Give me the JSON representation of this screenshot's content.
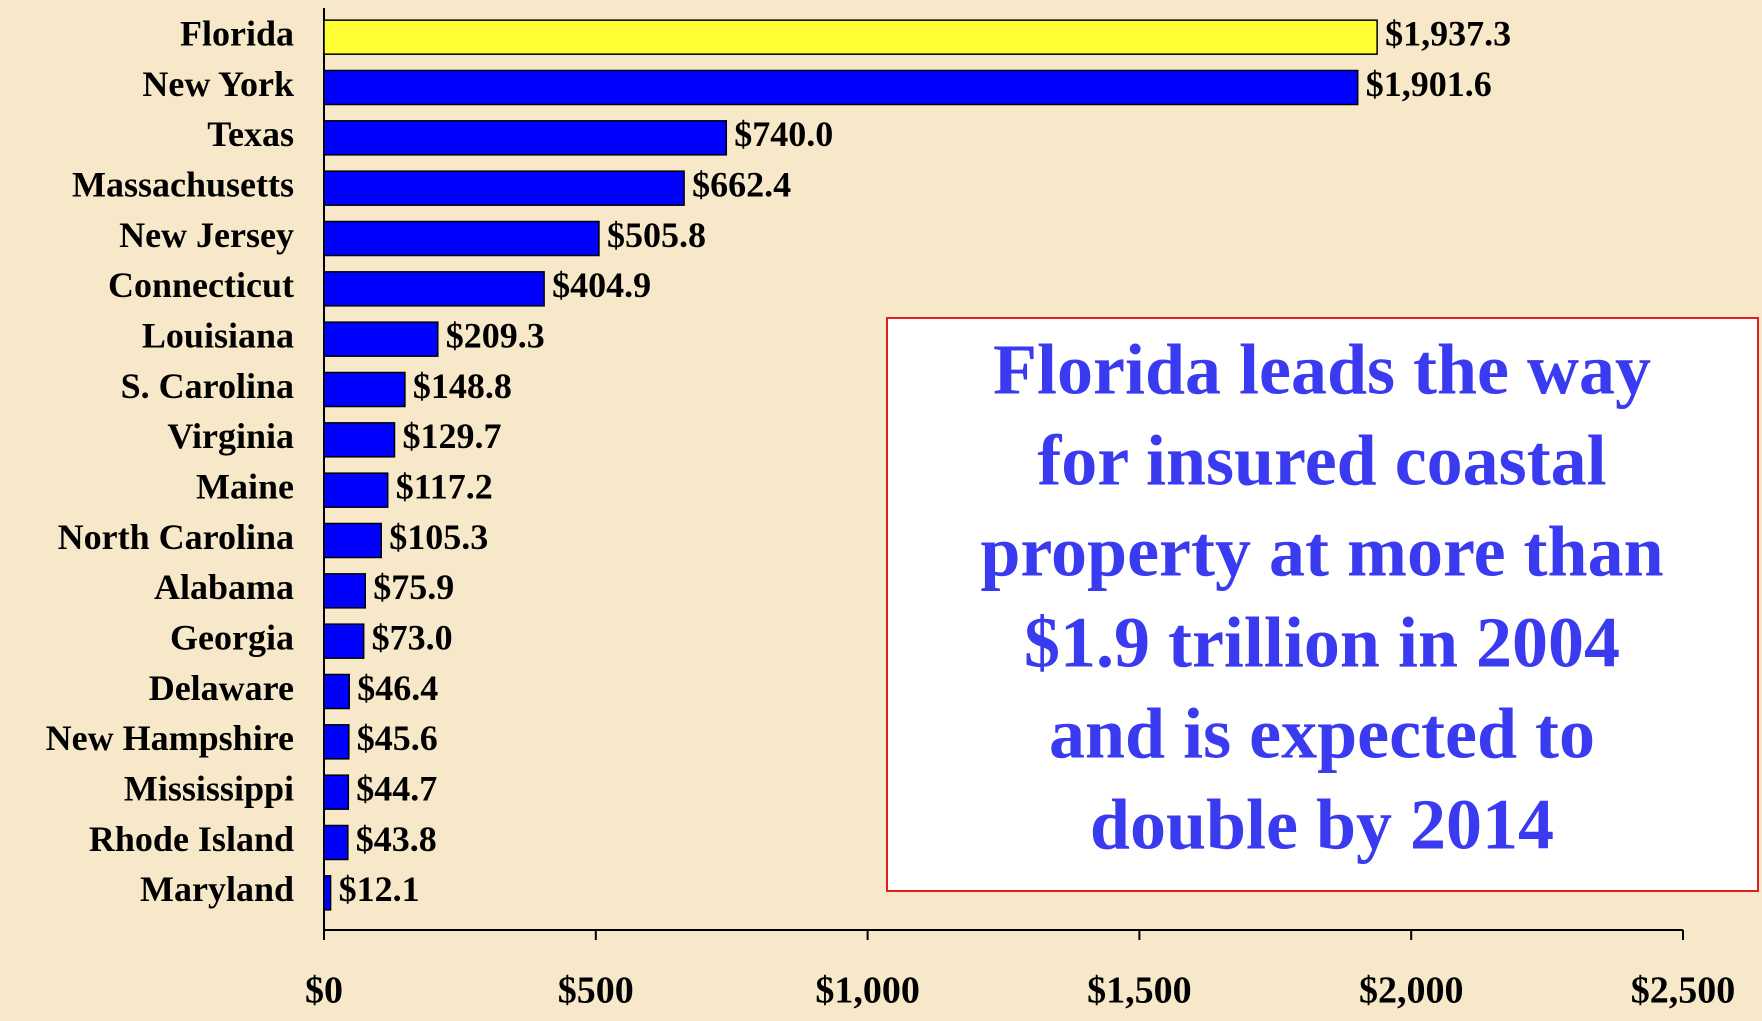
{
  "chart_data": {
    "type": "bar",
    "categories": [
      "Florida",
      "New York",
      "Texas",
      "Massachusetts",
      "New Jersey",
      "Connecticut",
      "Louisiana",
      "S. Carolina",
      "Virginia",
      "Maine",
      "North Carolina",
      "Alabama",
      "Georgia",
      "Delaware",
      "New Hampshire",
      "Mississippi",
      "Rhode Island",
      "Maryland"
    ],
    "values": [
      1937.3,
      1901.6,
      740.0,
      662.4,
      505.8,
      404.9,
      209.3,
      148.8,
      129.7,
      117.2,
      105.3,
      75.9,
      73.0,
      46.4,
      45.6,
      44.7,
      43.8,
      12.1
    ],
    "value_labels": [
      "$1,937.3",
      "$1,901.6",
      "$740.0",
      "$662.4",
      "$505.8",
      "$404.9",
      "$209.3",
      "$148.8",
      "$129.7",
      "$117.2",
      "$105.3",
      "$75.9",
      "$73.0",
      "$46.4",
      "$45.6",
      "$44.7",
      "$43.8",
      "$12.1"
    ],
    "colors": [
      "#ffff33",
      "#0000ff",
      "#0000ff",
      "#0000ff",
      "#0000ff",
      "#0000ff",
      "#0000ff",
      "#0000ff",
      "#0000ff",
      "#0000ff",
      "#0000ff",
      "#0000ff",
      "#0000ff",
      "#0000ff",
      "#0000ff",
      "#0000ff",
      "#0000ff",
      "#0000ff"
    ],
    "xlim": [
      0,
      2500
    ],
    "xticks": [
      {
        "value": 0,
        "label": "$0"
      },
      {
        "value": 500,
        "label": "$500"
      },
      {
        "value": 1000,
        "label": "$1,000"
      },
      {
        "value": 1500,
        "label": "$1,500"
      },
      {
        "value": 2000,
        "label": "$2,000"
      },
      {
        "value": 2500,
        "label": "$2,500"
      }
    ],
    "annotation": [
      "Florida leads the way",
      "for insured coastal",
      "property at more than",
      "$1.9 trillion in 2004",
      "and is expected to",
      "double by 2014"
    ]
  }
}
